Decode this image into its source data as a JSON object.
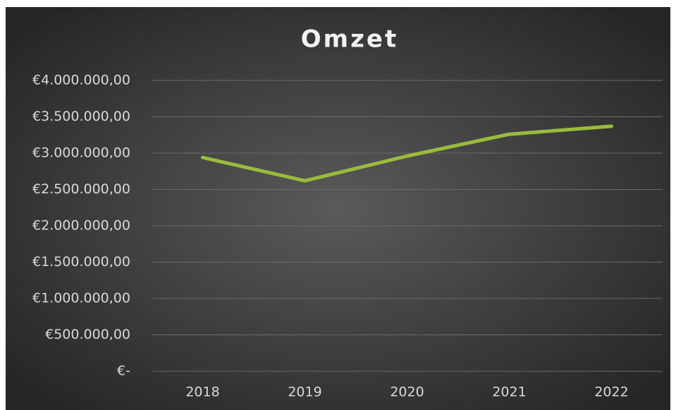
{
  "chart_data": {
    "type": "line",
    "title": "Omzet",
    "categories": [
      "2018",
      "2019",
      "2020",
      "2021",
      "2022"
    ],
    "series": [
      {
        "name": "Omzet",
        "color": "#9bbb3b",
        "values": [
          2940000,
          2620000,
          2960000,
          3260000,
          3370000
        ]
      }
    ],
    "ylim": [
      0,
      4000000
    ],
    "yticks": [
      {
        "value": 0,
        "label": "€-"
      },
      {
        "value": 500000,
        "label": "€500.000,00"
      },
      {
        "value": 1000000,
        "label": "€1.000.000,00"
      },
      {
        "value": 1500000,
        "label": "€1.500.000,00"
      },
      {
        "value": 2000000,
        "label": "€2.000.000,00"
      },
      {
        "value": 2500000,
        "label": "€2.500.000,00"
      },
      {
        "value": 3000000,
        "label": "€3.000.000,00"
      },
      {
        "value": 3500000,
        "label": "€3.500.000,00"
      },
      {
        "value": 4000000,
        "label": "€4.000.000,00"
      }
    ],
    "grid": true
  }
}
